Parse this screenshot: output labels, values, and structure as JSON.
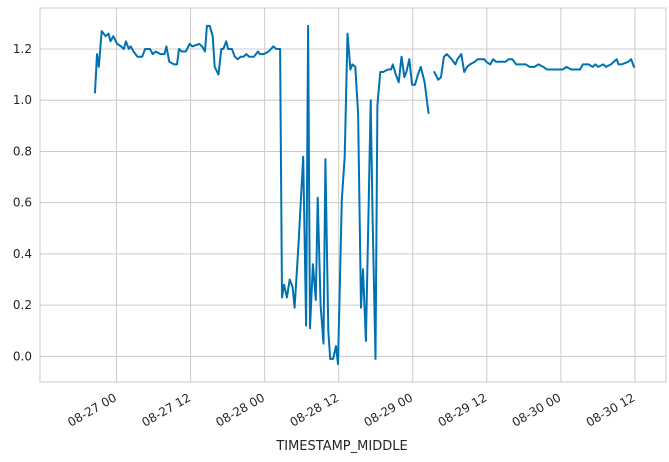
{
  "chart_data": {
    "type": "line",
    "title": "",
    "xlabel": "TIMESTAMP_MIDDLE",
    "ylabel": "",
    "x_unit": "hours",
    "xlim": [
      "08-26 11:36",
      "08-30 17:02"
    ],
    "ylim": [
      -0.1,
      1.36
    ],
    "grid": true,
    "legend": "none",
    "x_ticks": [
      {
        "label": "08-27 00",
        "value": "08-27 00"
      },
      {
        "label": "08-27 12",
        "value": "08-27 12"
      },
      {
        "label": "08-28 00",
        "value": "08-28 00"
      },
      {
        "label": "08-28 12",
        "value": "08-28 12"
      },
      {
        "label": "08-29 00",
        "value": "08-29 00"
      },
      {
        "label": "08-29 12",
        "value": "08-29 12"
      },
      {
        "label": "08-30 00",
        "value": "08-30 00"
      },
      {
        "label": "08-30 12",
        "value": "08-30 12"
      }
    ],
    "y_ticks": [
      {
        "label": "0.0",
        "value": 0.0
      },
      {
        "label": "0.2",
        "value": 0.2
      },
      {
        "label": "0.4",
        "value": 0.4
      },
      {
        "label": "0.6",
        "value": 0.6
      },
      {
        "label": "0.8",
        "value": 0.8
      },
      {
        "label": "1.0",
        "value": 1.0
      },
      {
        "label": "1.2",
        "value": 1.2
      }
    ],
    "series": [
      {
        "color": "#0072b2",
        "segments": [
          [
            [
              "08-26 20:31",
              1.03
            ],
            [
              "08-26 20:50",
              1.18
            ],
            [
              "08-26 21:08",
              1.13
            ],
            [
              "08-26 21:36",
              1.27
            ],
            [
              "08-26 22:14",
              1.25
            ],
            [
              "08-26 22:42",
              1.26
            ],
            [
              "08-26 23:01",
              1.23
            ],
            [
              "08-26 23:29",
              1.25
            ],
            [
              "08-27 00:07",
              1.22
            ],
            [
              "08-27 00:44",
              1.21
            ],
            [
              "08-27 01:12",
              1.2
            ],
            [
              "08-27 01:31",
              1.23
            ],
            [
              "08-27 01:59",
              1.2
            ],
            [
              "08-27 02:18",
              1.21
            ],
            [
              "08-27 02:46",
              1.19
            ],
            [
              "08-27 03:23",
              1.17
            ],
            [
              "08-27 04:10",
              1.17
            ],
            [
              "08-27 04:38",
              1.2
            ],
            [
              "08-27 05:25",
              1.2
            ],
            [
              "08-27 05:53",
              1.18
            ],
            [
              "08-27 06:21",
              1.19
            ],
            [
              "08-27 07:08",
              1.18
            ],
            [
              "08-27 07:46",
              1.18
            ],
            [
              "08-27 08:05",
              1.21
            ],
            [
              "08-27 08:33",
              1.15
            ],
            [
              "08-27 09:20",
              1.14
            ],
            [
              "08-27 09:48",
              1.14
            ],
            [
              "08-27 10:07",
              1.2
            ],
            [
              "08-27 10:35",
              1.19
            ],
            [
              "08-27 11:13",
              1.19
            ],
            [
              "08-27 11:50",
              1.22
            ],
            [
              "08-27 12:18",
              1.21
            ],
            [
              "08-27 13:24",
              1.22
            ],
            [
              "08-27 13:52",
              1.21
            ],
            [
              "08-27 14:20",
              1.19
            ],
            [
              "08-27 14:39",
              1.29
            ],
            [
              "08-27 15:07",
              1.29
            ],
            [
              "08-27 15:35",
              1.25
            ],
            [
              "08-27 15:54",
              1.13
            ],
            [
              "08-27 16:31",
              1.1
            ],
            [
              "08-27 16:59",
              1.2
            ],
            [
              "08-27 17:18",
              1.2
            ],
            [
              "08-27 17:46",
              1.23
            ],
            [
              "08-27 18:05",
              1.2
            ],
            [
              "08-27 18:42",
              1.2
            ],
            [
              "08-27 19:10",
              1.17
            ],
            [
              "08-27 19:38",
              1.16
            ],
            [
              "08-27 20:06",
              1.17
            ],
            [
              "08-27 20:34",
              1.17
            ],
            [
              "08-27 21:02",
              1.18
            ],
            [
              "08-27 21:30",
              1.17
            ],
            [
              "08-27 22:17",
              1.17
            ],
            [
              "08-27 22:55",
              1.19
            ],
            [
              "08-27 23:13",
              1.18
            ],
            [
              "08-27 23:51",
              1.18
            ],
            [
              "08-28 00:38",
              1.19
            ],
            [
              "08-28 01:25",
              1.21
            ],
            [
              "08-28 01:53",
              1.2
            ],
            [
              "08-28 02:30",
              1.2
            ],
            [
              "08-28 02:49",
              0.23
            ],
            [
              "08-28 03:08",
              0.28
            ],
            [
              "08-28 03:36",
              0.23
            ],
            [
              "08-28 04:04",
              0.3
            ],
            [
              "08-28 04:32",
              0.27
            ],
            [
              "08-28 04:51",
              0.19
            ],
            [
              "08-28 05:28",
              0.43
            ],
            [
              "08-28 06:15",
              0.78
            ],
            [
              "08-28 06:43",
              0.12
            ],
            [
              "08-28 07:02",
              1.29
            ],
            [
              "08-28 07:21",
              0.11
            ],
            [
              "08-28 07:49",
              0.36
            ],
            [
              "08-28 08:17",
              0.22
            ],
            [
              "08-28 08:36",
              0.62
            ],
            [
              "08-28 09:04",
              0.2
            ],
            [
              "08-28 09:32",
              0.05
            ],
            [
              "08-28 09:51",
              0.77
            ],
            [
              "08-28 10:19",
              0.1
            ],
            [
              "08-28 10:37",
              -0.01
            ],
            [
              "08-28 11:06",
              -0.01
            ],
            [
              "08-28 11:34",
              0.04
            ],
            [
              "08-28 11:53",
              -0.03
            ],
            [
              "08-28 12:30",
              0.61
            ],
            [
              "08-28 12:58",
              0.78
            ],
            [
              "08-28 13:26",
              1.26
            ],
            [
              "08-28 13:54",
              1.12
            ],
            [
              "08-28 14:13",
              1.14
            ],
            [
              "08-28 14:41",
              1.13
            ],
            [
              "08-28 15:09",
              0.95
            ],
            [
              "08-28 15:37",
              0.19
            ],
            [
              "08-28 15:56",
              0.34
            ],
            [
              "08-28 16:24",
              0.06
            ],
            [
              "08-28 16:52",
              0.6
            ],
            [
              "08-28 17:11",
              1.0
            ],
            [
              "08-28 17:29",
              0.56
            ],
            [
              "08-28 17:58",
              -0.01
            ],
            [
              "08-28 18:16",
              0.98
            ],
            [
              "08-28 18:44",
              1.11
            ],
            [
              "08-28 19:12",
              1.11
            ],
            [
              "08-28 19:59",
              1.12
            ],
            [
              "08-28 20:28",
              1.12
            ],
            [
              "08-28 20:46",
              1.14
            ],
            [
              "08-28 21:15",
              1.1
            ],
            [
              "08-28 21:43",
              1.07
            ],
            [
              "08-28 22:11",
              1.17
            ],
            [
              "08-28 22:39",
              1.09
            ],
            [
              "08-28 22:58",
              1.11
            ],
            [
              "08-28 23:26",
              1.16
            ],
            [
              "08-28 23:54",
              1.06
            ],
            [
              "08-29 00:22",
              1.06
            ],
            [
              "08-29 00:50",
              1.1
            ],
            [
              "08-29 01:18",
              1.13
            ],
            [
              "08-29 01:55",
              1.07
            ],
            [
              "08-29 02:33",
              0.95
            ]
          ],
          [
            [
              "08-29 03:29",
              1.11
            ],
            [
              "08-29 04:07",
              1.08
            ],
            [
              "08-29 04:35",
              1.09
            ],
            [
              "08-29 05:03",
              1.17
            ],
            [
              "08-29 05:31",
              1.18
            ],
            [
              "08-29 06:18",
              1.16
            ],
            [
              "08-29 06:55",
              1.14
            ],
            [
              "08-29 07:14",
              1.16
            ],
            [
              "08-29 07:52",
              1.18
            ],
            [
              "08-29 08:20",
              1.11
            ],
            [
              "08-29 08:48",
              1.13
            ],
            [
              "08-29 09:16",
              1.14
            ],
            [
              "08-29 10:03",
              1.15
            ],
            [
              "08-29 10:31",
              1.16
            ],
            [
              "08-29 10:59",
              1.16
            ],
            [
              "08-29 11:36",
              1.16
            ],
            [
              "08-29 11:55",
              1.15
            ],
            [
              "08-29 12:33",
              1.14
            ],
            [
              "08-29 13:01",
              1.16
            ],
            [
              "08-29 13:29",
              1.15
            ],
            [
              "08-29 14:16",
              1.15
            ],
            [
              "08-29 15:03",
              1.15
            ],
            [
              "08-29 15:31",
              1.16
            ],
            [
              "08-29 16:08",
              1.16
            ],
            [
              "08-29 16:46",
              1.14
            ],
            [
              "08-29 17:42",
              1.14
            ],
            [
              "08-29 18:20",
              1.14
            ],
            [
              "08-29 18:57",
              1.13
            ],
            [
              "08-29 19:44",
              1.13
            ],
            [
              "08-29 20:22",
              1.14
            ],
            [
              "08-29 21:09",
              1.13
            ],
            [
              "08-29 21:46",
              1.12
            ],
            [
              "08-29 22:33",
              1.12
            ],
            [
              "08-29 23:20",
              1.12
            ],
            [
              "08-30 00:17",
              1.12
            ],
            [
              "08-30 00:54",
              1.13
            ],
            [
              "08-30 01:41",
              1.12
            ],
            [
              "08-30 02:19",
              1.12
            ],
            [
              "08-30 03:06",
              1.12
            ],
            [
              "08-30 03:34",
              1.14
            ],
            [
              "08-30 04:30",
              1.14
            ],
            [
              "08-30 05:08",
              1.13
            ],
            [
              "08-30 05:36",
              1.14
            ],
            [
              "08-30 06:04",
              1.13
            ],
            [
              "08-30 06:51",
              1.14
            ],
            [
              "08-30 07:19",
              1.13
            ],
            [
              "08-30 08:06",
              1.14
            ],
            [
              "08-30 09:02",
              1.16
            ],
            [
              "08-30 09:21",
              1.14
            ],
            [
              "08-30 09:49",
              1.14
            ],
            [
              "08-30 10:55",
              1.15
            ],
            [
              "08-30 11:23",
              1.16
            ],
            [
              "08-30 11:51",
              1.13
            ]
          ]
        ]
      }
    ]
  }
}
